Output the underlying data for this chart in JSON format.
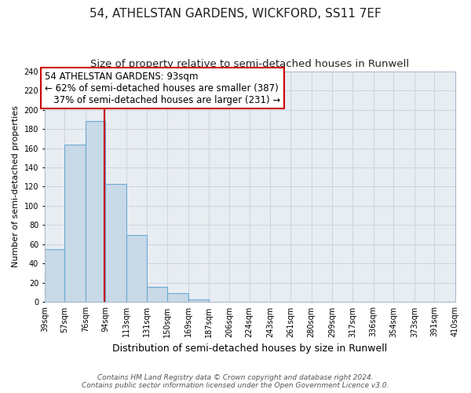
{
  "title": "54, ATHELSTAN GARDENS, WICKFORD, SS11 7EF",
  "subtitle": "Size of property relative to semi-detached houses in Runwell",
  "xlabel": "Distribution of semi-detached houses by size in Runwell",
  "ylabel": "Number of semi-detached properties",
  "bin_edges": [
    39,
    57,
    76,
    94,
    113,
    131,
    150,
    169,
    187,
    206,
    224,
    243,
    261,
    280,
    299,
    317,
    336,
    354,
    373,
    391,
    410
  ],
  "bin_counts": [
    55,
    164,
    188,
    123,
    70,
    16,
    9,
    3,
    0,
    0,
    0,
    0,
    0,
    0,
    0,
    0,
    0,
    0,
    0,
    0
  ],
  "bar_color": "#c8d9e8",
  "bar_edge_color": "#6aaad4",
  "grid_color": "#c8d0dc",
  "background_color": "#ffffff",
  "plot_bg_color": "#e8edf2",
  "property_size": 93,
  "red_line_color": "#cc0000",
  "ann_line1": "54 ATHELSTAN GARDENS: 93sqm",
  "ann_line2": "← 62% of semi-detached houses are smaller (387)",
  "ann_line3": "   37% of semi-detached houses are larger (231) →",
  "annotation_box_edge_color": "#cc0000",
  "tick_labels": [
    "39sqm",
    "57sqm",
    "76sqm",
    "94sqm",
    "113sqm",
    "131sqm",
    "150sqm",
    "169sqm",
    "187sqm",
    "206sqm",
    "224sqm",
    "243sqm",
    "261sqm",
    "280sqm",
    "299sqm",
    "317sqm",
    "336sqm",
    "354sqm",
    "373sqm",
    "391sqm",
    "410sqm"
  ],
  "ylim": [
    0,
    240
  ],
  "yticks": [
    0,
    20,
    40,
    60,
    80,
    100,
    120,
    140,
    160,
    180,
    200,
    220,
    240
  ],
  "footer_line1": "Contains HM Land Registry data © Crown copyright and database right 2024.",
  "footer_line2": "Contains public sector information licensed under the Open Government Licence v3.0.",
  "title_fontsize": 11,
  "subtitle_fontsize": 9.5,
  "xlabel_fontsize": 9,
  "ylabel_fontsize": 8,
  "tick_fontsize": 7,
  "ann_fontsize": 8.5,
  "footer_fontsize": 6.5
}
